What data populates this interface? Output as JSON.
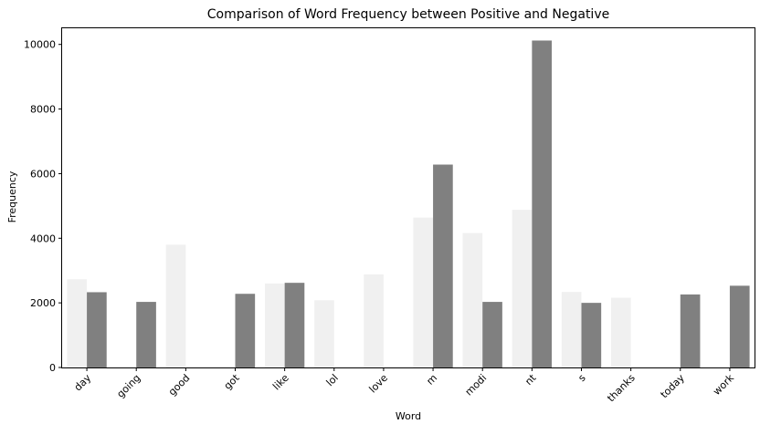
{
  "chart_data": {
    "type": "bar",
    "title": "Comparison of Word Frequency between Positive and Negative",
    "xlabel": "Word",
    "ylabel": "Frequency",
    "categories": [
      "day",
      "going",
      "good",
      "got",
      "like",
      "lol",
      "love",
      "m",
      "modi",
      "nt",
      "s",
      "thanks",
      "today",
      "work"
    ],
    "series": [
      {
        "values": [
          2730,
          null,
          3800,
          null,
          2600,
          2080,
          2880,
          4640,
          4160,
          4880,
          2340,
          2160,
          null,
          null
        ],
        "color": "#f0f0f0"
      },
      {
        "values": [
          2330,
          2030,
          null,
          2280,
          2620,
          null,
          null,
          6280,
          2030,
          10120,
          2000,
          null,
          2260,
          2530
        ],
        "color": "#808080"
      }
    ],
    "ylim": [
      0,
      10500
    ],
    "yticks": [
      0,
      2000,
      4000,
      6000,
      8000,
      10000
    ],
    "grid": false,
    "legend": "none"
  }
}
